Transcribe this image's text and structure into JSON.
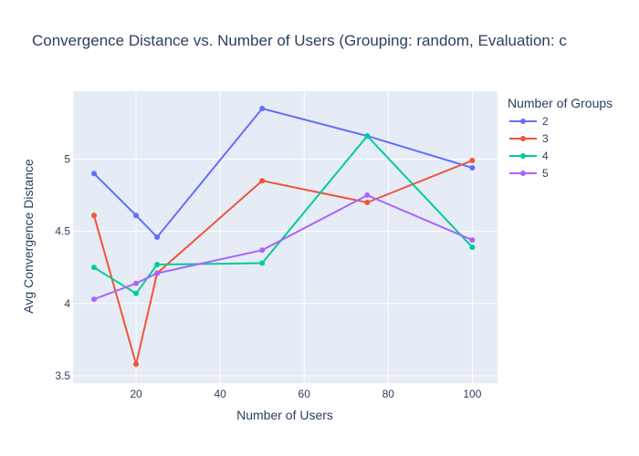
{
  "chart_data": {
    "type": "line",
    "title": "Convergence Distance vs. Number of Users (Grouping: random, Evaluation: c",
    "xlabel": "Number of Users",
    "ylabel": "Avg Convergence Distance",
    "xlim": [
      5,
      106
    ],
    "ylim": [
      3.45,
      5.47
    ],
    "x_ticks": [
      20,
      40,
      60,
      80,
      100
    ],
    "y_ticks": [
      3.5,
      4,
      4.5,
      5
    ],
    "y_tick_labels": [
      "3.5",
      "4",
      "4.5",
      "5"
    ],
    "grid": true,
    "background": "#e5ecf6",
    "legend": {
      "title": "Number of Groups",
      "placement": "top-right outside"
    },
    "x": [
      10,
      20,
      25,
      50,
      75,
      100
    ],
    "series": [
      {
        "name": "2",
        "color": "#636efa",
        "values": [
          4.9,
          4.61,
          4.46,
          5.35,
          5.16,
          4.94
        ]
      },
      {
        "name": "3",
        "color": "#ef553b",
        "values": [
          4.61,
          3.58,
          4.21,
          4.85,
          4.7,
          4.99
        ]
      },
      {
        "name": "4",
        "color": "#00cc96",
        "values": [
          4.25,
          4.07,
          4.27,
          4.28,
          5.16,
          4.39
        ]
      },
      {
        "name": "5",
        "color": "#ab63fa",
        "values": [
          4.03,
          4.14,
          4.21,
          4.37,
          4.75,
          4.44
        ]
      }
    ]
  }
}
